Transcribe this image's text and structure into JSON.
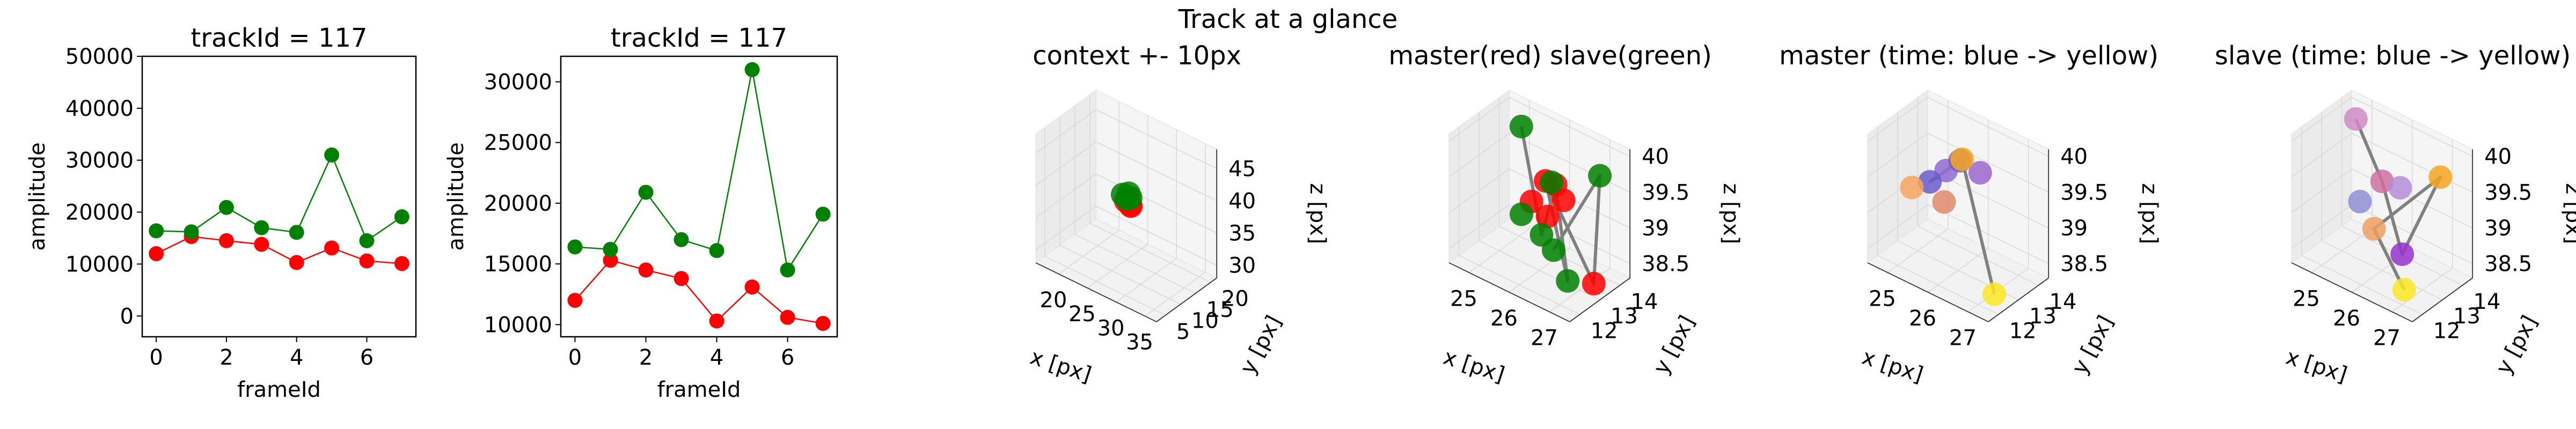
{
  "figure": {
    "suptitle": "Track at a glance"
  },
  "colors": {
    "master": "#ff0000",
    "slave": "#008000",
    "track_line": "#808080",
    "pane": "#f2f2f2",
    "time_start": "#440154",
    "time_end": "#fde725"
  },
  "chart_data": [
    {
      "type": "line",
      "title": "trackId = 117",
      "xlabel": "frameId",
      "ylabel": "amplitude",
      "x": [
        0,
        1,
        2,
        3,
        4,
        5,
        6,
        7
      ],
      "xticks": [
        0,
        2,
        4,
        6
      ],
      "xlim": [
        -0.4,
        7.4
      ],
      "ylim": [
        -4000,
        50000
      ],
      "yticks": [
        0,
        10000,
        20000,
        30000,
        40000,
        50000
      ],
      "series": [
        {
          "values": [
            12000,
            15300,
            14500,
            13800,
            10300,
            13100,
            10600,
            10100
          ],
          "color": "#ff0000"
        },
        {
          "values": [
            16400,
            16200,
            20900,
            17000,
            16100,
            31000,
            14500,
            19100
          ],
          "color": "#008000"
        }
      ],
      "markers": true,
      "grid": false
    },
    {
      "type": "line",
      "title": "trackId = 117",
      "xlabel": "frameId",
      "ylabel": "amplitude",
      "x": [
        0,
        1,
        2,
        3,
        4,
        5,
        6,
        7
      ],
      "xticks": [
        0,
        2,
        4,
        6
      ],
      "xlim": [
        -0.4,
        7.4
      ],
      "ylim": [
        9000,
        32100
      ],
      "yticks": [
        10000,
        15000,
        20000,
        25000,
        30000
      ],
      "series": [
        {
          "values": [
            12000,
            15300,
            14500,
            13800,
            10300,
            13100,
            10600,
            10100
          ],
          "color": "#ff0000"
        },
        {
          "values": [
            16400,
            16200,
            20900,
            17000,
            16100,
            31000,
            14500,
            19100
          ],
          "color": "#008000"
        }
      ],
      "markers": true,
      "grid": false
    },
    {
      "type": "scatter",
      "projection": "3d",
      "title": "context +- 10px",
      "xlabel": "x [px]",
      "ylabel": "y [px]",
      "zlabel": "z [px]",
      "xlim": [
        16,
        37
      ],
      "ylim": [
        2,
        22
      ],
      "zlim": [
        28,
        48
      ],
      "xticks": [
        20,
        25,
        30,
        35
      ],
      "yticks": [
        5,
        10,
        15,
        20
      ],
      "zticks": [
        30,
        35,
        40,
        45
      ],
      "grid": true,
      "points": [
        {
          "x": 26.0,
          "y": 12.8,
          "z": 38.3,
          "color": "#ff0000"
        },
        {
          "x": 26.6,
          "y": 13.1,
          "z": 37.8,
          "color": "#ff0000"
        },
        {
          "x": 27.0,
          "y": 12.6,
          "z": 38.0,
          "color": "#ff0000"
        },
        {
          "x": 25.4,
          "y": 12.9,
          "z": 39.0,
          "color": "#008000"
        },
        {
          "x": 26.4,
          "y": 13.0,
          "z": 39.6,
          "color": "#008000"
        },
        {
          "x": 26.9,
          "y": 12.7,
          "z": 39.2,
          "color": "#008000"
        },
        {
          "x": 26.2,
          "y": 12.8,
          "z": 38.7,
          "color": "#008000"
        }
      ],
      "path": [
        {
          "x": 25.4,
          "y": 12.9,
          "z": 39.0
        },
        {
          "x": 26.6,
          "y": 13.1,
          "z": 37.8
        },
        {
          "x": 26.9,
          "y": 12.7,
          "z": 39.2
        }
      ]
    },
    {
      "type": "scatter",
      "projection": "3d",
      "title": "master(red) slave(green)",
      "xlabel": "x [px]",
      "ylabel": "y [px]",
      "zlabel": "z [px]",
      "xlim": [
        24.5,
        27.5
      ],
      "ylim": [
        11.5,
        14.5
      ],
      "zlim": [
        38.3,
        40.1
      ],
      "xticks": [
        25,
        26,
        27
      ],
      "yticks": [
        12,
        13,
        14
      ],
      "zticks": [
        38.5,
        39.0,
        39.5,
        40.0
      ],
      "grid": true,
      "points": [
        {
          "x": 25.2,
          "y": 13.7,
          "z": 39.95,
          "color": "#008000"
        },
        {
          "x": 26.6,
          "y": 12.1,
          "z": 39.9,
          "color": "#ff0000"
        },
        {
          "x": 26.8,
          "y": 12.2,
          "z": 39.88,
          "color": "#ff0000"
        },
        {
          "x": 26.9,
          "y": 12.4,
          "z": 39.65,
          "color": "#ff0000"
        },
        {
          "x": 26.3,
          "y": 12.0,
          "z": 39.55,
          "color": "#ff0000"
        },
        {
          "x": 26.7,
          "y": 12.0,
          "z": 39.45,
          "color": "#ff0000"
        },
        {
          "x": 26.5,
          "y": 12.6,
          "z": 39.75,
          "color": "#008000"
        },
        {
          "x": 27.3,
          "y": 13.4,
          "z": 39.9,
          "color": "#008000"
        },
        {
          "x": 25.9,
          "y": 12.3,
          "z": 39.2,
          "color": "#008000"
        },
        {
          "x": 26.4,
          "y": 12.3,
          "z": 39.05,
          "color": "#008000"
        },
        {
          "x": 26.6,
          "y": 12.5,
          "z": 38.85,
          "color": "#008000"
        },
        {
          "x": 27.0,
          "y": 12.4,
          "z": 38.55,
          "color": "#008000"
        },
        {
          "x": 27.4,
          "y": 12.9,
          "z": 38.52,
          "color": "#ff0000"
        }
      ],
      "path": [
        {
          "x": 25.2,
          "y": 13.7,
          "z": 39.95
        },
        {
          "x": 26.4,
          "y": 12.3,
          "z": 39.05
        },
        {
          "x": 26.8,
          "y": 12.2,
          "z": 39.88
        },
        {
          "x": 27.0,
          "y": 12.4,
          "z": 38.55
        },
        {
          "x": 26.6,
          "y": 12.1,
          "z": 39.9
        },
        {
          "x": 27.4,
          "y": 12.9,
          "z": 38.52
        },
        {
          "x": 27.3,
          "y": 13.4,
          "z": 39.9
        },
        {
          "x": 26.6,
          "y": 12.5,
          "z": 38.85
        }
      ]
    },
    {
      "type": "scatter",
      "projection": "3d",
      "title": "master (time: blue -> yellow)",
      "xlabel": "x [px]",
      "ylabel": "y [px]",
      "zlabel": "z [px]",
      "xlim": [
        24.5,
        27.5
      ],
      "ylim": [
        11.5,
        14.5
      ],
      "zlim": [
        38.3,
        40.1
      ],
      "xticks": [
        25,
        26,
        27
      ],
      "yticks": [
        12,
        13,
        14
      ],
      "zticks": [
        38.5,
        39.0,
        39.5,
        40.0
      ],
      "grid": true,
      "points": [
        {
          "x": 25.9,
          "y": 12.6,
          "z": 39.75,
          "color": "#8e6bd6"
        },
        {
          "x": 26.2,
          "y": 12.7,
          "z": 39.95,
          "color": "#7b5cc4"
        },
        {
          "x": 26.6,
          "y": 12.9,
          "z": 39.85,
          "color": "#9a66cc"
        },
        {
          "x": 25.6,
          "y": 12.4,
          "z": 39.55,
          "color": "#6a5acd"
        },
        {
          "x": 26.0,
          "y": 12.3,
          "z": 39.4,
          "color": "#e08a6a"
        },
        {
          "x": 26.2,
          "y": 12.8,
          "z": 39.95,
          "color": "#f5a623"
        },
        {
          "x": 25.3,
          "y": 12.1,
          "z": 39.45,
          "color": "#f4a460"
        },
        {
          "x": 27.2,
          "y": 12.4,
          "z": 38.42,
          "color": "#fde725"
        }
      ],
      "path": [
        {
          "x": 25.9,
          "y": 12.6,
          "z": 39.75
        },
        {
          "x": 26.2,
          "y": 12.7,
          "z": 39.95
        },
        {
          "x": 25.6,
          "y": 12.4,
          "z": 39.55
        },
        {
          "x": 26.2,
          "y": 12.8,
          "z": 39.95
        },
        {
          "x": 27.2,
          "y": 12.4,
          "z": 38.42
        }
      ]
    },
    {
      "type": "scatter",
      "projection": "3d",
      "title": "slave (time: blue -> yellow)",
      "xlabel": "x [px]",
      "ylabel": "y [px]",
      "zlabel": "z [px]",
      "xlim": [
        24.5,
        27.5
      ],
      "ylim": [
        11.5,
        14.5
      ],
      "zlim": [
        38.3,
        40.1
      ],
      "xticks": [
        25,
        26,
        27
      ],
      "yticks": [
        12,
        13,
        14
      ],
      "zticks": [
        38.5,
        39.0,
        39.5,
        40.0
      ],
      "grid": true,
      "points": [
        {
          "x": 25.0,
          "y": 13.7,
          "z": 40.0,
          "color": "#d08ac8"
        },
        {
          "x": 26.3,
          "y": 12.4,
          "z": 39.75,
          "color": "#d070a0"
        },
        {
          "x": 26.7,
          "y": 12.5,
          "z": 39.75,
          "color": "#b48cd8"
        },
        {
          "x": 27.3,
          "y": 13.3,
          "z": 39.9,
          "color": "#f5a623"
        },
        {
          "x": 25.8,
          "y": 12.3,
          "z": 39.35,
          "color": "#8e8ed6"
        },
        {
          "x": 26.2,
          "y": 12.2,
          "z": 39.1,
          "color": "#f0a060"
        },
        {
          "x": 26.7,
          "y": 12.6,
          "z": 38.8,
          "color": "#9932cc"
        },
        {
          "x": 26.9,
          "y": 12.3,
          "z": 38.42,
          "color": "#fde725"
        }
      ],
      "path": [
        {
          "x": 25.0,
          "y": 13.7,
          "z": 40.0
        },
        {
          "x": 26.3,
          "y": 12.4,
          "z": 39.75
        },
        {
          "x": 26.7,
          "y": 12.6,
          "z": 38.8
        },
        {
          "x": 27.3,
          "y": 13.3,
          "z": 39.9
        },
        {
          "x": 26.2,
          "y": 12.2,
          "z": 39.1
        },
        {
          "x": 26.9,
          "y": 12.3,
          "z": 38.42
        }
      ]
    }
  ]
}
